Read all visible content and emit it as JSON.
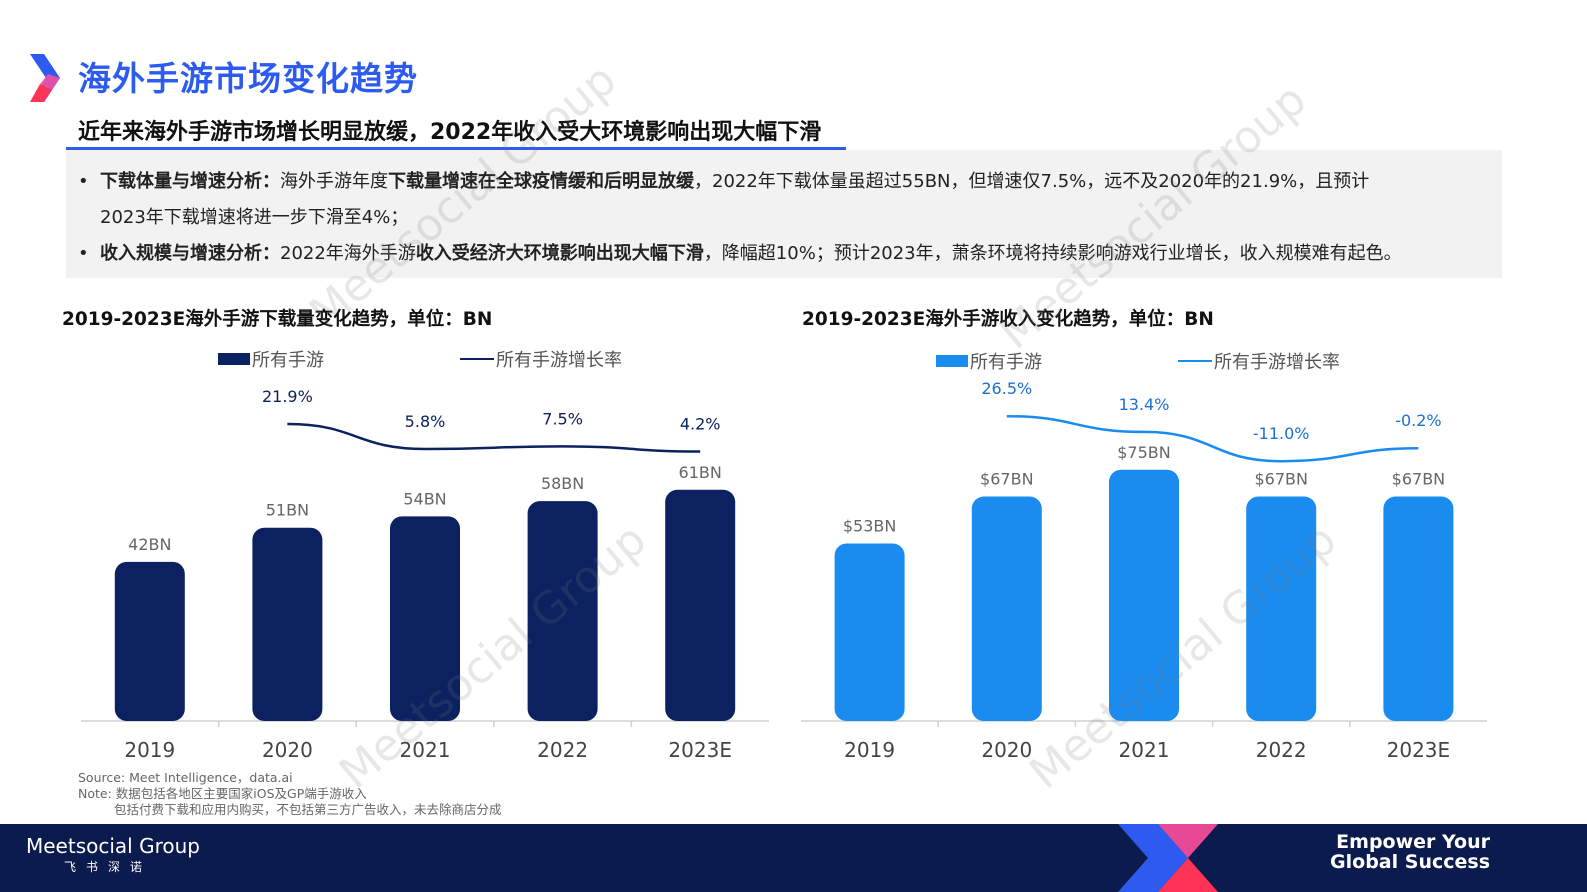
{
  "header": {
    "title": "海外手游市场变化趋势",
    "subtitle": "近年来海外手游市场增长明显放缓，2022年收入受大环境影响出现大幅下滑"
  },
  "summary": {
    "bullet1_label": "下载体量与增速分析：",
    "bullet1_text1": "海外手游年度",
    "bullet1_bold": "下载量增速在全球疫情缓和后明显放缓",
    "bullet1_text2": "，2022年下载体量虽超过55BN，但增速仅7.5%，远不及2020年的21.9%，且预计",
    "bullet1_cont": "2023年下载增速将进一步下滑至4%；",
    "bullet2_label": "收入规模与增速分析：",
    "bullet2_text1": "2022年海外手游",
    "bullet2_bold": "收入受经济大环境影响出现大幅下滑",
    "bullet2_text2": "，降幅超10%；预计2023年，萧条环境将持续影响游戏行业增长，收入规模难有起色。"
  },
  "notes": {
    "source": "Source: Meet Intelligence，data.ai",
    "note1": "Note: 数据包括各地区主要国家iOS及GP端手游收入",
    "note2": "包括付费下载和应用内购买，不包括第三方广告收入，未去除商店分成"
  },
  "footer": {
    "brand": "Meetsocial Group",
    "brand_sub": "飞书深诺",
    "slogan_line1": "Empower Your",
    "slogan_line2": "Global Success"
  },
  "watermark": "Meetsocial Group",
  "colors": {
    "accent": "#2d5bf0",
    "downloads_bar": "#0b2160",
    "revenue_bar": "#1a8cf0",
    "footer_bg": "#0b1b4d"
  },
  "chart_data": [
    {
      "type": "bar",
      "title": "2019-2023E海外手游下载量变化趋势，单位：BN",
      "categories": [
        "2019",
        "2020",
        "2021",
        "2022",
        "2023E"
      ],
      "series": [
        {
          "name": "所有手游",
          "values": [
            42,
            51,
            54,
            58,
            61
          ],
          "labels": [
            "42BN",
            "51BN",
            "54BN",
            "58BN",
            "61BN"
          ]
        },
        {
          "name": "所有手游增长率",
          "type": "line",
          "values": [
            null,
            21.9,
            5.8,
            7.5,
            4.2
          ],
          "labels": [
            "",
            "21.9%",
            "5.8%",
            "7.5%",
            "4.2%"
          ]
        }
      ],
      "legend": "top",
      "grid": false
    },
    {
      "type": "bar",
      "title": "2019-2023E海外手游收入变化趋势，单位：BN",
      "categories": [
        "2019",
        "2020",
        "2021",
        "2022",
        "2023E"
      ],
      "series": [
        {
          "name": "所有手游",
          "values": [
            53,
            67,
            75,
            67,
            67
          ],
          "labels": [
            "$53BN",
            "$67BN",
            "$75BN",
            "$67BN",
            "$67BN"
          ]
        },
        {
          "name": "所有手游增长率",
          "type": "line",
          "values": [
            null,
            26.5,
            13.4,
            -11.0,
            -0.2
          ],
          "labels": [
            "",
            "26.5%",
            "13.4%",
            "-11.0%",
            "-0.2%"
          ]
        }
      ],
      "legend": "top",
      "grid": false
    }
  ]
}
